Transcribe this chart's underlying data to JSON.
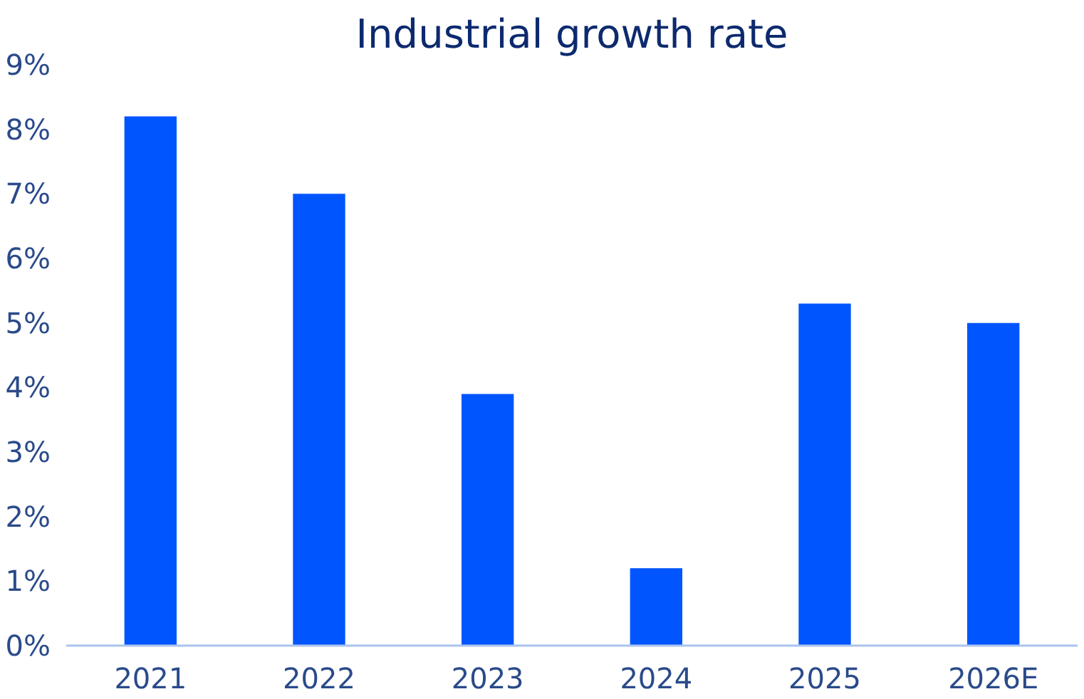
{
  "chart_data": {
    "type": "bar",
    "title": "Industrial growth rate",
    "categories": [
      "2021",
      "2022",
      "2023",
      "2024",
      "2025",
      "2026E"
    ],
    "values": [
      8.2,
      7.0,
      3.9,
      1.2,
      5.3,
      5.0
    ],
    "color": "#0055ff",
    "ylim": [
      0,
      9
    ],
    "yticks": [
      {
        "value": 0,
        "label": "0%"
      },
      {
        "value": 1,
        "label": "1%"
      },
      {
        "value": 2,
        "label": "2%"
      },
      {
        "value": 3,
        "label": "3%"
      },
      {
        "value": 4,
        "label": "4%"
      },
      {
        "value": 5,
        "label": "5%"
      },
      {
        "value": 6,
        "label": "6%"
      },
      {
        "value": 7,
        "label": "7%"
      },
      {
        "value": 8,
        "label": "8%"
      },
      {
        "value": 9,
        "label": "9%"
      }
    ],
    "grid": false
  }
}
